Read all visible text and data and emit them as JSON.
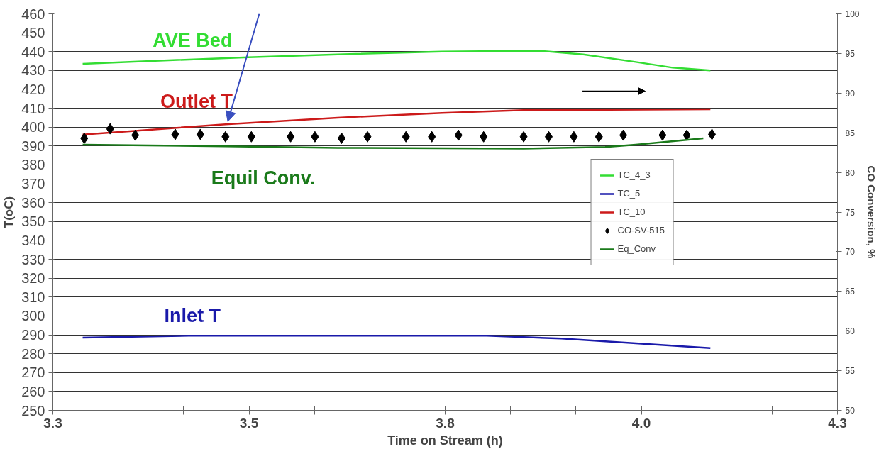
{
  "chart_data": {
    "type": "line",
    "xlabel": "Time on Stream (h)",
    "ylabel": "T(oC)",
    "y2label": "CO Conversion, %",
    "xlim": [
      3.25,
      4.25
    ],
    "xticks": [
      {
        "value": 3.25,
        "label": "3.3"
      },
      {
        "value": 3.3333,
        "label": null
      },
      {
        "value": 3.4167,
        "label": null
      },
      {
        "value": 3.5,
        "label": "3.5"
      },
      {
        "value": 3.5833,
        "label": null
      },
      {
        "value": 3.6667,
        "label": null
      },
      {
        "value": 3.75,
        "label": "3.8"
      },
      {
        "value": 3.8333,
        "label": null
      },
      {
        "value": 3.9167,
        "label": null
      },
      {
        "value": 4.0,
        "label": "4.0"
      },
      {
        "value": 4.0833,
        "label": null
      },
      {
        "value": 4.1667,
        "label": null
      },
      {
        "value": 4.25,
        "label": "4.3"
      }
    ],
    "ylim": [
      250,
      460
    ],
    "yticks": [
      250,
      260,
      270,
      280,
      290,
      300,
      310,
      320,
      330,
      340,
      350,
      360,
      370,
      380,
      390,
      400,
      410,
      420,
      430,
      440,
      450,
      460
    ],
    "y2lim": [
      50,
      100
    ],
    "y2ticks": [
      50,
      55,
      60,
      65,
      70,
      75,
      80,
      85,
      90,
      95,
      100
    ],
    "grid": "y",
    "legend": "right",
    "line_style": "solid",
    "marker": "none",
    "series": [
      {
        "name": "TC_4_3",
        "color": "#33dd33",
        "x": [
          3.288,
          3.375,
          3.499,
          3.613,
          3.746,
          3.869,
          3.926,
          3.993,
          4.04,
          4.088
        ],
        "values": [
          433.5,
          435,
          437,
          438.5,
          440,
          440.5,
          438.5,
          434.5,
          431.5,
          430
        ]
      },
      {
        "name": "TC_5",
        "color": "#1a1aaa",
        "x": [
          3.288,
          3.423,
          3.803,
          3.898,
          3.993,
          4.088
        ],
        "values": [
          288.5,
          289.5,
          289.5,
          288,
          285.5,
          283
        ]
      },
      {
        "name": "TC_10",
        "color": "#cc1a1a",
        "x": [
          3.288,
          3.47,
          3.613,
          3.746,
          3.85,
          4.088
        ],
        "values": [
          396,
          401.5,
          405,
          407.5,
          409,
          409.5
        ]
      },
      {
        "name": "CO-SV-515",
        "type": "scatter",
        "marker": "diamond",
        "axis": "y2",
        "color": "#000000",
        "x": [
          3.29,
          3.323,
          3.355,
          3.406,
          3.438,
          3.47,
          3.503,
          3.553,
          3.584,
          3.618,
          3.651,
          3.7,
          3.733,
          3.767,
          3.799,
          3.85,
          3.882,
          3.914,
          3.946,
          3.977,
          4.027,
          4.058,
          4.09
        ],
        "values": [
          84.3,
          85.5,
          84.7,
          84.8,
          84.8,
          84.5,
          84.5,
          84.5,
          84.5,
          84.3,
          84.5,
          84.5,
          84.5,
          84.7,
          84.5,
          84.5,
          84.5,
          84.5,
          84.5,
          84.7,
          84.7,
          84.7,
          84.8
        ]
      },
      {
        "name": "Eq_Conv",
        "color": "#1a7a1a",
        "axis": "y2",
        "x": [
          3.288,
          3.47,
          3.613,
          3.85,
          3.954,
          3.993,
          4.079
        ],
        "values": [
          83.5,
          83.3,
          83.1,
          83.0,
          83.2,
          83.5,
          84.3
        ]
      }
    ],
    "annotations": [
      "AVE Bed",
      {
        "text": "Outlet T",
        "x": 3.473,
        "y": 403
      },
      "Equil Conv.",
      "Inlet T"
    ]
  }
}
